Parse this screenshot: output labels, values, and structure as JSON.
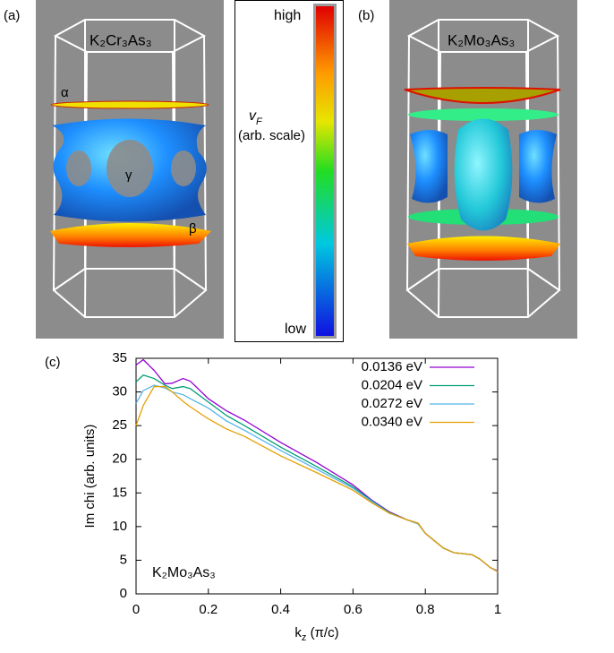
{
  "panels": {
    "a": {
      "label": "(a)",
      "formula": "K₂Cr₃As₃",
      "surface_labels": [
        "α",
        "γ",
        "β"
      ]
    },
    "b": {
      "label": "(b)",
      "formula": "K₂Mo₃As₃"
    },
    "colorbar": {
      "title": {
        "main": "v",
        "sub": "F"
      },
      "subtitle": "(arb. scale)",
      "high": "high",
      "low": "low"
    }
  },
  "chart_data": {
    "type": "line",
    "panel_label": "(c)",
    "xlabel": {
      "main": "k",
      "sub": "z",
      "rest": " (π/c)"
    },
    "ylabel": "Im chi (arb. units)",
    "annotation": "K₂Mo₃As₃",
    "legend": "top-right",
    "x": [
      0,
      0.02,
      0.05,
      0.08,
      0.1,
      0.13,
      0.15,
      0.2,
      0.25,
      0.3,
      0.4,
      0.5,
      0.6,
      0.65,
      0.7,
      0.75,
      0.78,
      0.8,
      0.85,
      0.88,
      0.9,
      0.93,
      0.95,
      0.98,
      1.0
    ],
    "series": [
      {
        "name": "0.0136 eV",
        "color": "#9400d3",
        "values": [
          34.0,
          34.8,
          33.2,
          31.2,
          31.3,
          32.0,
          31.6,
          29.0,
          27.2,
          25.8,
          22.5,
          19.5,
          16.2,
          14.0,
          12.2,
          11.0,
          10.5,
          9.0,
          6.8,
          6.1,
          6.0,
          5.8,
          5.2,
          3.9,
          3.4
        ]
      },
      {
        "name": "0.0204 eV",
        "color": "#009e73",
        "values": [
          31.5,
          32.5,
          32.0,
          31.0,
          30.5,
          30.8,
          30.5,
          28.5,
          26.5,
          25.0,
          21.8,
          18.9,
          15.9,
          13.9,
          12.1,
          11.0,
          10.4,
          9.0,
          6.8,
          6.1,
          6.0,
          5.8,
          5.2,
          3.9,
          3.3
        ]
      },
      {
        "name": "0.0272 eV",
        "color": "#56b4e9",
        "values": [
          28.3,
          30.2,
          31.0,
          30.6,
          30.0,
          29.6,
          29.0,
          27.6,
          25.7,
          24.3,
          21.3,
          18.5,
          15.7,
          13.8,
          12.0,
          11.0,
          10.4,
          9.0,
          6.8,
          6.1,
          6.0,
          5.8,
          5.2,
          3.9,
          3.3
        ]
      },
      {
        "name": "0.0340 eV",
        "color": "#e69f00",
        "values": [
          25.0,
          28.0,
          30.8,
          30.8,
          30.0,
          28.6,
          27.8,
          26.0,
          24.5,
          23.4,
          20.5,
          18.0,
          15.4,
          13.6,
          12.0,
          11.0,
          10.5,
          9.0,
          6.8,
          6.1,
          6.0,
          5.8,
          5.2,
          3.9,
          3.3
        ]
      }
    ],
    "xlim": [
      0,
      1
    ],
    "xticks": [
      0,
      0.2,
      0.4,
      0.6,
      0.8,
      1
    ],
    "ylim": [
      0,
      35
    ],
    "yticks": [
      0,
      5,
      10,
      15,
      20,
      25,
      30,
      35
    ]
  }
}
